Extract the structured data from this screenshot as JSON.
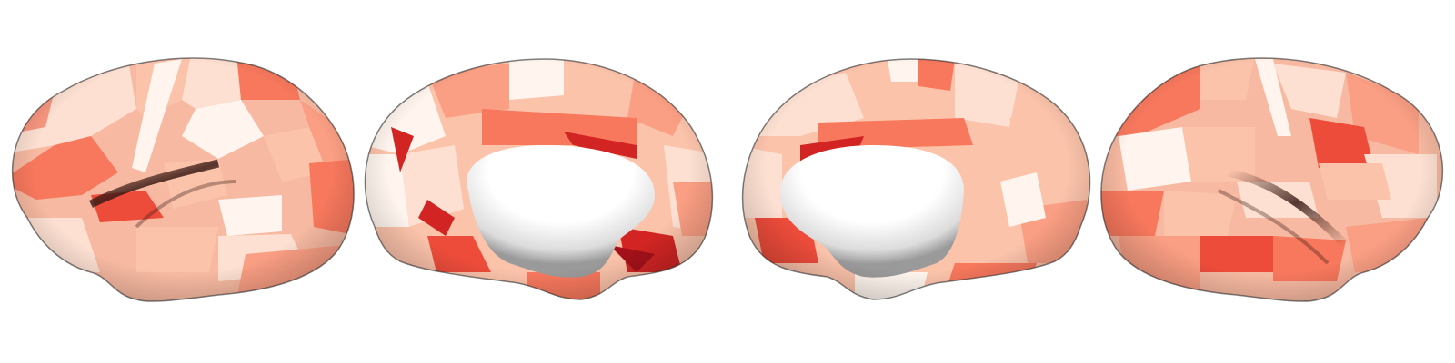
{
  "figure": {
    "views": [
      {
        "id": "left-lateral",
        "hemisphere": "left",
        "view": "lateral"
      },
      {
        "id": "left-medial",
        "hemisphere": "left",
        "view": "medial"
      },
      {
        "id": "right-medial",
        "hemisphere": "right",
        "view": "medial"
      },
      {
        "id": "right-lateral",
        "hemisphere": "right",
        "view": "lateral"
      }
    ],
    "colormap": "Reds",
    "colors": {
      "background": "#ffffff",
      "base": "#f7b9a1",
      "palette": [
        "#fff5ee",
        "#fde0d2",
        "#fcc3ab",
        "#fb9f84",
        "#f7785d",
        "#ee4c3b",
        "#d22523",
        "#a4111a"
      ],
      "medial_wall": "#ffffff"
    }
  }
}
